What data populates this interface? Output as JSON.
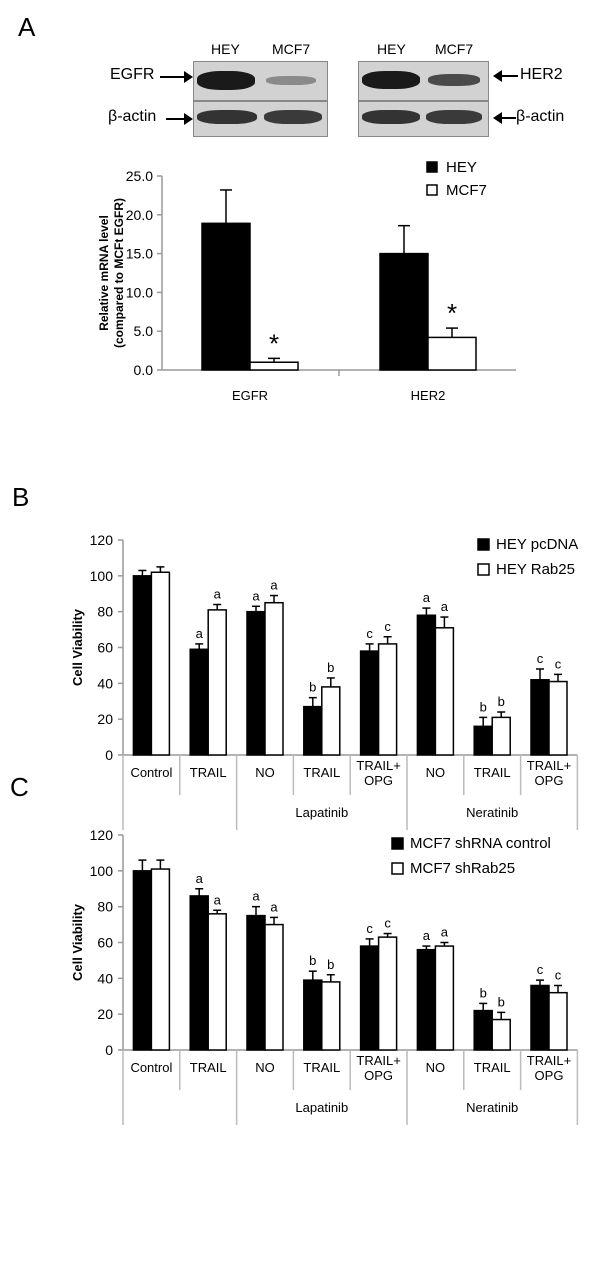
{
  "panels": {
    "a": "A",
    "b": "B",
    "c": "C"
  },
  "blot": {
    "lanes_left": [
      "HEY",
      "MCF7"
    ],
    "lanes_right": [
      "HEY",
      "MCF7"
    ],
    "left_labels": [
      "EGFR",
      "β-actin"
    ],
    "right_labels": [
      "HER2",
      "β-actin"
    ]
  },
  "chart_data": [
    {
      "type": "bar",
      "ylabel": "Relative mRNA level (compared to MCFt EGFR)",
      "ylabel_lines": [
        "Relative mRNA level",
        "(compared to MCFt EGFR)"
      ],
      "ylim": [
        0,
        25
      ],
      "yticks": [
        "0.0",
        "5.0",
        "10.0",
        "15.0",
        "20.0",
        "25.0"
      ],
      "categories": [
        "EGFR",
        "HER2"
      ],
      "series": [
        {
          "name": "HEY",
          "values": [
            18.9,
            15.0
          ],
          "errors": [
            4.3,
            3.6
          ],
          "fill": "#000000"
        },
        {
          "name": "MCF7",
          "values": [
            1.0,
            4.2
          ],
          "errors": [
            0.5,
            1.2
          ],
          "fill": "#ffffff"
        }
      ],
      "annotations": [
        "",
        "*",
        "",
        "*"
      ],
      "legend": "top-right"
    },
    {
      "type": "bar",
      "ylabel": "Cell Viability",
      "ylim": [
        0,
        120
      ],
      "yticks": [
        "0",
        "20",
        "40",
        "60",
        "80",
        "100",
        "120"
      ],
      "categories": [
        "Control",
        "TRAIL",
        "NO",
        "TRAIL",
        "TRAIL+\nOPG",
        "NO",
        "TRAIL",
        "TRAIL+\nOPG"
      ],
      "groups": [
        {
          "label": "Lapatinib",
          "from": 2,
          "to": 4
        },
        {
          "label": "Neratinib",
          "from": 5,
          "to": 7
        }
      ],
      "series": [
        {
          "name": "HEY pcDNA",
          "values": [
            100,
            59,
            80,
            27,
            58,
            78,
            16,
            42
          ],
          "errors": [
            3,
            3,
            3,
            5,
            4,
            4,
            5,
            6
          ],
          "fill": "#000000"
        },
        {
          "name": "HEY Rab25",
          "values": [
            102,
            81,
            85,
            38,
            62,
            71,
            21,
            41
          ],
          "errors": [
            3,
            3,
            4,
            5,
            4,
            6,
            3,
            4
          ],
          "fill": "#ffffff"
        }
      ],
      "annotations": [
        [
          "",
          ""
        ],
        [
          "a",
          "a"
        ],
        [
          "a",
          "a"
        ],
        [
          "b",
          "b"
        ],
        [
          "c",
          "c"
        ],
        [
          "a",
          "a"
        ],
        [
          "b",
          "b"
        ],
        [
          "c",
          "c"
        ]
      ],
      "legend": "top-right"
    },
    {
      "type": "bar",
      "ylabel": "Cell Viability",
      "ylim": [
        0,
        120
      ],
      "yticks": [
        "0",
        "20",
        "40",
        "60",
        "80",
        "100",
        "120"
      ],
      "categories": [
        "Control",
        "TRAIL",
        "NO",
        "TRAIL",
        "TRAIL+\nOPG",
        "NO",
        "TRAIL",
        "TRAIL+\nOPG"
      ],
      "groups": [
        {
          "label": "Lapatinib",
          "from": 2,
          "to": 4
        },
        {
          "label": "Neratinib",
          "from": 5,
          "to": 7
        }
      ],
      "series": [
        {
          "name": "MCF7 shRNA control",
          "values": [
            100,
            86,
            75,
            39,
            58,
            56,
            22,
            36
          ],
          "errors": [
            6,
            4,
            5,
            5,
            4,
            2,
            4,
            3
          ],
          "fill": "#000000"
        },
        {
          "name": "MCF7 shRab25",
          "values": [
            101,
            76,
            70,
            38,
            63,
            58,
            17,
            32
          ],
          "errors": [
            5,
            2,
            4,
            4,
            2,
            2,
            4,
            4
          ],
          "fill": "#ffffff"
        }
      ],
      "annotations": [
        [
          "",
          ""
        ],
        [
          "a",
          "a"
        ],
        [
          "a",
          "a"
        ],
        [
          "b",
          "b"
        ],
        [
          "c",
          "c"
        ],
        [
          "a",
          "a"
        ],
        [
          "b",
          "b"
        ],
        [
          "c",
          "c"
        ]
      ],
      "legend": "top-right"
    }
  ]
}
